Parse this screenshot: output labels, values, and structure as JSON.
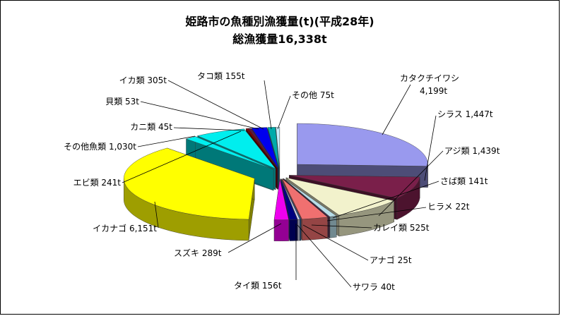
{
  "chart_data": {
    "type": "pie",
    "title": "姫路市の魚種別漁獲量(t)(平成28年)",
    "subtitle": "総漁獲量16,338t",
    "slices": [
      {
        "name": "カタクチイワシ",
        "value": 4199,
        "label": "カタクチイワシ",
        "label2": "4,199t",
        "color": "#9999ee"
      },
      {
        "name": "シラス",
        "value": 1447,
        "label": "シラス 1,447t",
        "color": "#7a1f4a"
      },
      {
        "name": "アジ類",
        "value": 1439,
        "label": "アジ類 1,439t",
        "color": "#f2f2cc"
      },
      {
        "name": "さば類",
        "value": 141,
        "label": "さば類 141t",
        "color": "#b7dde8"
      },
      {
        "name": "ヒラメ",
        "value": 22,
        "label": "ヒラメ 22t",
        "color": "#5b2a5b"
      },
      {
        "name": "カレイ類",
        "value": 525,
        "label": "カレイ類 525t",
        "color": "#f07070"
      },
      {
        "name": "アナゴ",
        "value": 25,
        "label": "アナゴ 25t",
        "color": "#1f5fa0"
      },
      {
        "name": "サワラ",
        "value": 40,
        "label": "サワラ 40t",
        "color": "#d6d6f5"
      },
      {
        "name": "タイ類",
        "value": 156,
        "label": "タイ類 156t",
        "color": "#000080"
      },
      {
        "name": "スズキ",
        "value": 289,
        "label": "スズキ 289t",
        "color": "#ee00ee"
      },
      {
        "name": "イカナゴ",
        "value": 6151,
        "label": "イカナゴ 6,151t",
        "color": "#ffff00"
      },
      {
        "name": "エビ類",
        "value": 241,
        "label": "エビ類 241t",
        "color": "#00f0f0"
      },
      {
        "name": "その他魚類",
        "value": 1030,
        "label": "その他魚類 1,030t",
        "color": "#00eeee"
      },
      {
        "name": "カニ類",
        "value": 45,
        "label": "カニ類 45t",
        "color": "#800000"
      },
      {
        "name": "貝類",
        "value": 53,
        "label": "貝類 53t",
        "color": "#5a1a40"
      },
      {
        "name": "イカ類",
        "value": 305,
        "label": "イカ類 305t",
        "color": "#0000ee"
      },
      {
        "name": "タコ類",
        "value": 155,
        "label": "タコ類 155t",
        "color": "#00aaaa"
      },
      {
        "name": "その他",
        "value": 75,
        "label": "その他 75t",
        "color": "#c8f0ff"
      }
    ]
  }
}
